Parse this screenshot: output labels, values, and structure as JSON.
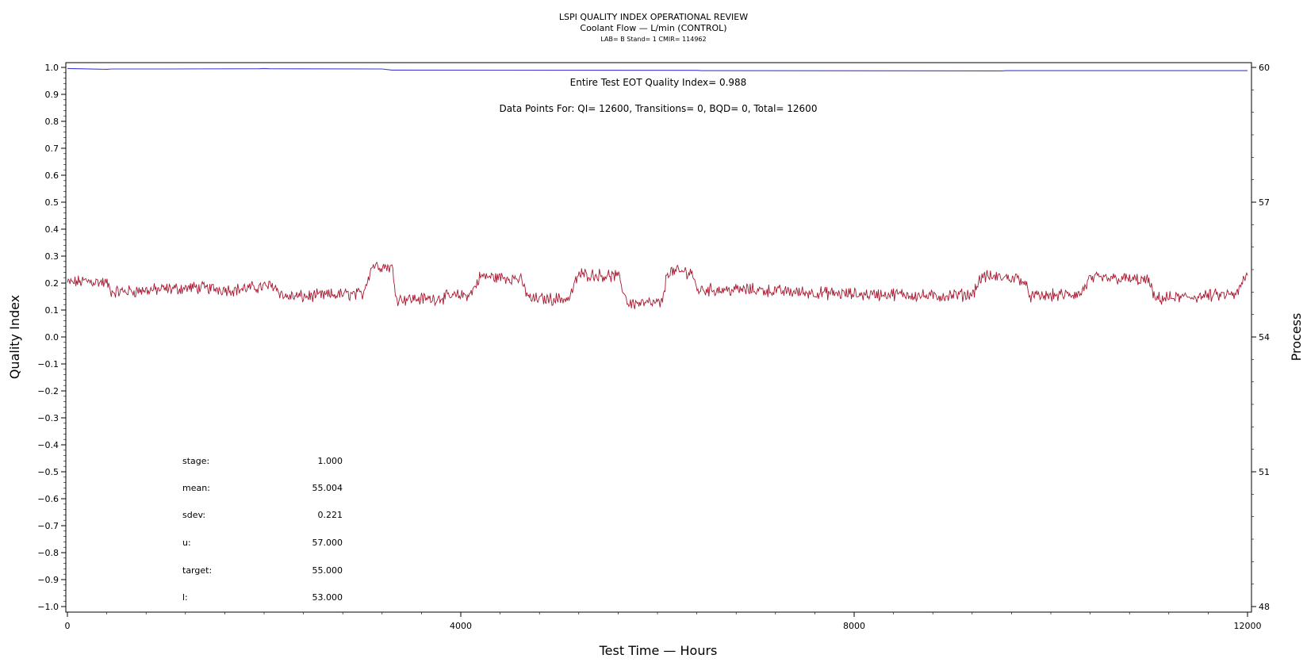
{
  "chart_data": {
    "type": "line",
    "title": "LSPI QUALITY INDEX OPERATIONAL REVIEW",
    "subtitle": "Coolant Flow — L/min (CONTROL)",
    "subsubtitle": "LAB= B Stand= 1 CMIR= 114962",
    "xlabel": "Test Time — Hours",
    "ylabel": "Quality Index",
    "y2label": "Process",
    "xlim": [
      0,
      12000
    ],
    "ylim": [
      -1.0,
      1.0
    ],
    "y2lim": [
      48,
      60
    ],
    "x_ticks": [
      0,
      4000,
      8000,
      12000
    ],
    "y_ticks": [
      -1.0,
      -0.9,
      -0.8,
      -0.7,
      -0.6,
      -0.5,
      -0.4,
      -0.3,
      -0.2,
      -0.1,
      0.0,
      0.1,
      0.2,
      0.3,
      0.4,
      0.5,
      0.6,
      0.7,
      0.8,
      0.9,
      1.0
    ],
    "y_tick_labels": [
      "−1.0",
      "−0.9",
      "−0.8",
      "−0.7",
      "−0.6",
      "−0.5",
      "−0.4",
      "−0.3",
      "−0.2",
      "−0.1",
      "0.0",
      "0.1",
      "0.2",
      "0.3",
      "0.4",
      "0.5",
      "0.6",
      "0.7",
      "0.8",
      "0.9",
      "1.0"
    ],
    "y2_ticks": [
      48,
      51,
      54,
      57,
      60
    ],
    "series": [
      {
        "axis": "left",
        "color": "#3b3bd6",
        "x": [
          0,
          120,
          400,
          450,
          1000,
          1950,
          2000,
          2050,
          3200,
          3300,
          6400,
          6450,
          9500,
          9550,
          12000
        ],
        "values": [
          0.996,
          0.995,
          0.993,
          0.994,
          0.994,
          0.995,
          0.996,
          0.995,
          0.994,
          0.99,
          0.989,
          0.988,
          0.987,
          0.988,
          0.988
        ]
      },
      {
        "axis": "right",
        "color": "#a81830",
        "x": [
          0,
          200,
          400,
          450,
          900,
          1300,
          1700,
          2100,
          2200,
          2400,
          2800,
          3000,
          3100,
          3300,
          3350,
          3700,
          4100,
          4200,
          4600,
          4700,
          5100,
          5200,
          5600,
          5700,
          6050,
          6100,
          6350,
          6400,
          7000,
          7400,
          8000,
          8500,
          8800,
          9200,
          9300,
          9700,
          9800,
          10300,
          10400,
          10700,
          11000,
          11050,
          11500,
          11900,
          11950,
          12000
        ],
        "values": [
          55.2,
          55.25,
          55.2,
          55.0,
          55.05,
          55.1,
          55.05,
          55.15,
          54.9,
          54.9,
          54.95,
          54.95,
          55.6,
          55.55,
          54.85,
          54.85,
          54.95,
          55.35,
          55.3,
          54.85,
          54.85,
          55.4,
          55.35,
          54.75,
          54.75,
          55.45,
          55.45,
          55.05,
          55.05,
          55.0,
          54.95,
          54.95,
          54.9,
          54.95,
          55.35,
          55.3,
          54.9,
          54.95,
          55.3,
          55.3,
          55.25,
          54.85,
          54.9,
          54.95,
          55.25,
          55.35
        ]
      }
    ],
    "annotations": {
      "qi_summary": "Entire Test EOT Quality Index=   0.988",
      "points_summary": "Data Points For: QI= 12600, Transitions=     0, BQD=     0, Total= 12600"
    },
    "stats": [
      {
        "label": "stage:",
        "value": "1.000"
      },
      {
        "label": "mean:",
        "value": "55.004"
      },
      {
        "label": "sdev:",
        "value": "0.221"
      },
      {
        "label": "u:",
        "value": "57.000"
      },
      {
        "label": "target:",
        "value": "55.000"
      },
      {
        "label": "l:",
        "value": "53.000"
      }
    ]
  }
}
